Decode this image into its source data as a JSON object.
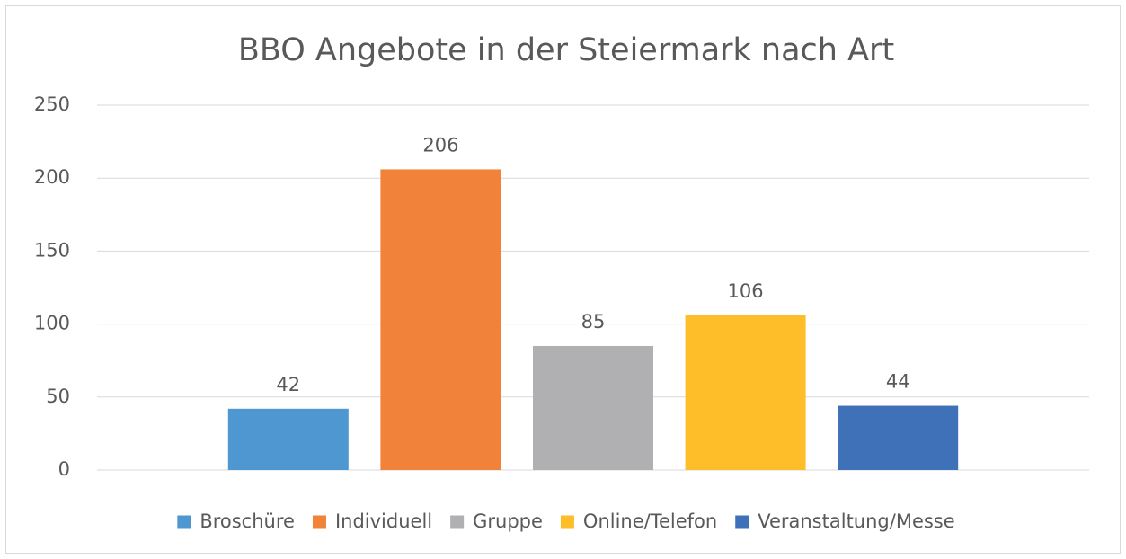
{
  "chart_data": {
    "type": "bar",
    "title": "BBO Angebote in der Steiermark nach Art",
    "categories": [
      null
    ],
    "series": [
      {
        "name": "Broschüre",
        "color": "#4e97d1",
        "values": [
          42
        ]
      },
      {
        "name": "Individuell",
        "color": "#f0823a",
        "values": [
          206
        ]
      },
      {
        "name": "Gruppe",
        "color": "#b0b0b2",
        "values": [
          85
        ]
      },
      {
        "name": "Online/Telefon",
        "color": "#fdbe2a",
        "values": [
          106
        ]
      },
      {
        "name": "Veranstaltung/Messe",
        "color": "#3f71b8",
        "values": [
          44
        ]
      }
    ],
    "ylim": [
      0,
      250
    ],
    "yticks": [
      0,
      50,
      100,
      150,
      200,
      250
    ],
    "grid": true,
    "legend": "bottom"
  }
}
